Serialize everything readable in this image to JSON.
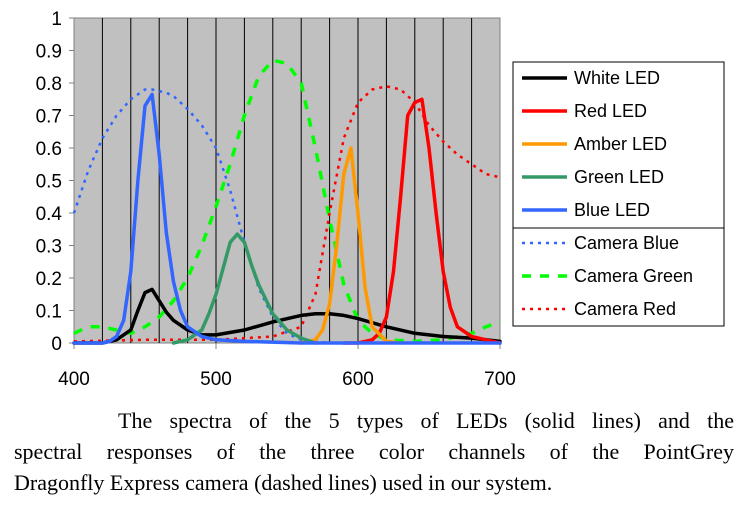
{
  "chart_data": {
    "type": "line",
    "xlabel": "",
    "ylabel": "",
    "xlim": [
      400,
      700
    ],
    "ylim": [
      0,
      1
    ],
    "x_ticks": [
      "400",
      "500",
      "600",
      "700"
    ],
    "y_ticks": [
      "0",
      "0.1",
      "0.2",
      "0.3",
      "0.4",
      "0.5",
      "0.6",
      "0.7",
      "0.8",
      "0.9",
      "1"
    ],
    "grid": "vertical",
    "legend_position": "right",
    "series": [
      {
        "name": "White LED",
        "color": "#000000",
        "style": "solid",
        "x": [
          400,
          420,
          430,
          440,
          445,
          450,
          455,
          460,
          465,
          470,
          480,
          490,
          500,
          520,
          540,
          560,
          570,
          580,
          590,
          600,
          620,
          640,
          660,
          680,
          700
        ],
        "y": [
          0,
          0,
          0.01,
          0.04,
          0.1,
          0.155,
          0.165,
          0.13,
          0.095,
          0.07,
          0.04,
          0.025,
          0.025,
          0.04,
          0.065,
          0.085,
          0.09,
          0.09,
          0.085,
          0.075,
          0.05,
          0.03,
          0.02,
          0.015,
          0.005
        ]
      },
      {
        "name": "Red LED",
        "color": "#ff0000",
        "style": "solid",
        "x": [
          590,
          600,
          610,
          615,
          620,
          625,
          630,
          635,
          640,
          645,
          650,
          655,
          660,
          665,
          670,
          680,
          690,
          700
        ],
        "y": [
          0,
          0,
          0.01,
          0.03,
          0.08,
          0.22,
          0.45,
          0.7,
          0.74,
          0.75,
          0.6,
          0.4,
          0.22,
          0.11,
          0.05,
          0.02,
          0.01,
          0
        ],
        "labels_note": ""
      },
      {
        "name": "Amber LED",
        "color": "#ff9900",
        "style": "solid",
        "x": [
          560,
          570,
          575,
          580,
          585,
          590,
          595,
          600,
          605,
          610,
          620,
          630
        ],
        "y": [
          0,
          0.01,
          0.04,
          0.12,
          0.3,
          0.52,
          0.6,
          0.4,
          0.17,
          0.05,
          0.005,
          0
        ]
      },
      {
        "name": "Green LED",
        "color": "#339966",
        "style": "solid",
        "x": [
          470,
          480,
          490,
          495,
          500,
          505,
          510,
          515,
          520,
          525,
          530,
          540,
          550,
          560,
          570
        ],
        "y": [
          0,
          0.01,
          0.04,
          0.09,
          0.15,
          0.23,
          0.31,
          0.335,
          0.31,
          0.24,
          0.18,
          0.09,
          0.04,
          0.015,
          0
        ]
      },
      {
        "name": "Blue LED",
        "color": "#3366ff",
        "style": "solid",
        "x": [
          400,
          420,
          425,
          430,
          435,
          440,
          445,
          450,
          455,
          460,
          465,
          470,
          475,
          480,
          490,
          500,
          520,
          560,
          600,
          700
        ],
        "y": [
          0,
          0,
          0.005,
          0.02,
          0.07,
          0.22,
          0.5,
          0.73,
          0.765,
          0.58,
          0.34,
          0.19,
          0.1,
          0.05,
          0.02,
          0.01,
          0.005,
          0,
          0,
          0
        ]
      },
      {
        "name": "Camera Blue",
        "color": "#3366ff",
        "style": "dotted",
        "x": [
          400,
          410,
          420,
          430,
          440,
          450,
          455,
          460,
          465,
          470,
          480,
          490,
          500,
          510,
          520,
          530,
          540,
          550,
          560,
          570,
          580
        ],
        "y": [
          0.4,
          0.53,
          0.63,
          0.7,
          0.75,
          0.78,
          0.78,
          0.775,
          0.77,
          0.76,
          0.72,
          0.67,
          0.6,
          0.47,
          0.31,
          0.17,
          0.08,
          0.03,
          0.01,
          0.005,
          0
        ]
      },
      {
        "name": "Camera Green",
        "color": "#00ff00",
        "style": "dashed",
        "x": [
          400,
          410,
          420,
          430,
          440,
          450,
          460,
          470,
          480,
          490,
          500,
          510,
          520,
          530,
          540,
          550,
          560,
          570,
          580,
          590,
          600,
          610,
          620,
          640,
          660,
          680,
          690,
          700
        ],
        "y": [
          0.03,
          0.05,
          0.05,
          0.04,
          0.03,
          0.05,
          0.08,
          0.13,
          0.2,
          0.3,
          0.42,
          0.55,
          0.7,
          0.82,
          0.87,
          0.86,
          0.8,
          0.6,
          0.38,
          0.18,
          0.07,
          0.03,
          0.01,
          0.005,
          0.01,
          0.03,
          0.05,
          0.065
        ]
      },
      {
        "name": "Camera Red",
        "color": "#ff0000",
        "style": "dotted",
        "x": [
          400,
          450,
          500,
          540,
          560,
          570,
          580,
          590,
          600,
          610,
          620,
          630,
          640,
          650,
          660,
          670,
          680,
          690,
          700
        ],
        "y": [
          0.005,
          0.01,
          0.01,
          0.02,
          0.05,
          0.15,
          0.4,
          0.63,
          0.74,
          0.78,
          0.79,
          0.78,
          0.74,
          0.67,
          0.62,
          0.58,
          0.55,
          0.52,
          0.51
        ]
      }
    ]
  },
  "caption": {
    "line1": "The spectra of the 5 types of LEDs (solid lines) and the",
    "line2": "spectral responses of the three color channels of the PointGrey",
    "line3": "Dragonfly Express camera (dashed lines) used in our system."
  }
}
